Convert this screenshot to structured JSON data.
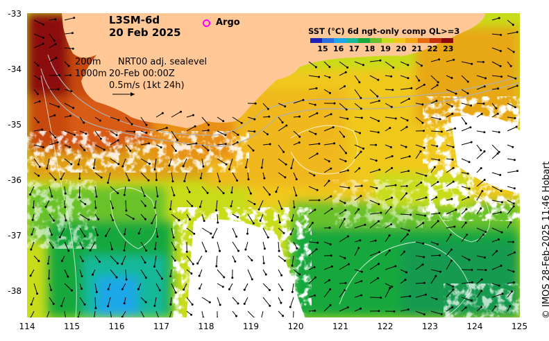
{
  "map": {
    "title": "L3SM-6d",
    "date": "20 Feb 2025",
    "argo_label": "Argo",
    "contour_legend": [
      "200m",
      "1000m"
    ],
    "product_label": "NRT00 adj. sealevel",
    "product_time": "20-Feb 00:00Z",
    "scale_label": "0.5m/s (1kt 24h)",
    "credit": "© IMOS 28-Feb-2025 11:46 Hobart",
    "lon_ticks": [
      "114",
      "115",
      "116",
      "117",
      "118",
      "119",
      "120",
      "121",
      "122",
      "123",
      "124",
      "125"
    ],
    "lat_ticks": [
      "-33",
      "-34",
      "-35",
      "-36",
      "-37",
      "-38"
    ],
    "land_color": "#ffc896"
  },
  "colorbar": {
    "title": "SST (°C) 6d ngt-only comp QL>=3",
    "ticks": [
      "15",
      "16",
      "17",
      "18",
      "19",
      "20",
      "21",
      "22",
      "23"
    ],
    "colors": [
      "#1f1fb8",
      "#2a6de0",
      "#1ba8e8",
      "#16b89a",
      "#19a83c",
      "#6ac22a",
      "#c8dc1a",
      "#f0c81a",
      "#f5a512",
      "#e86a10",
      "#c8300c",
      "#8c0a08"
    ]
  }
}
